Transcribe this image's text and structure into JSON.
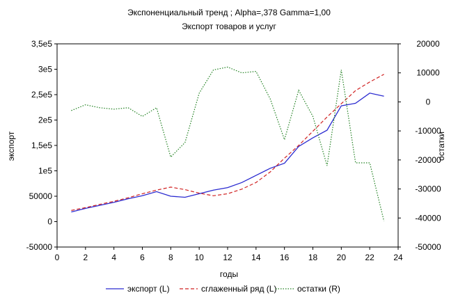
{
  "chart_data": {
    "type": "line",
    "title": "Экспоненциальный тренд ; Alpha=,378 Gamma=1,00",
    "subtitle": "Экспорт товаров и услуг",
    "xlabel": "годы",
    "ylabel_left": "экспорт",
    "ylabel_right": "остатки",
    "xlim": [
      0,
      24
    ],
    "ylim_left": [
      -50000,
      350000
    ],
    "ylim_right": [
      -50000,
      20000
    ],
    "x_ticks": [
      "0",
      "2",
      "4",
      "6",
      "8",
      "10",
      "12",
      "14",
      "16",
      "18",
      "20",
      "22",
      "24"
    ],
    "y_left_ticks": [
      "-50000",
      "0",
      "50000",
      "1e5",
      "1,5e5",
      "2e5",
      "2,5e5",
      "3e5",
      "3,5e5"
    ],
    "y_right_ticks": [
      "-50000",
      "-40000",
      "-30000",
      "-20000",
      "-10000",
      "0",
      "10000",
      "20000"
    ],
    "grid": false,
    "legend_position": "bottom",
    "x": [
      1,
      2,
      3,
      4,
      5,
      6,
      7,
      8,
      9,
      10,
      11,
      12,
      13,
      14,
      15,
      16,
      17,
      18,
      19,
      20,
      21,
      22,
      23
    ],
    "series": [
      {
        "name": "экспорт (L)",
        "axis": "left",
        "style": "solid",
        "color": "#2a2ad0",
        "values": [
          19000,
          26000,
          32000,
          38000,
          45000,
          51000,
          59000,
          50000,
          48000,
          55000,
          62000,
          67000,
          77000,
          91000,
          105000,
          115000,
          148000,
          165000,
          180000,
          228000,
          233000,
          253000,
          247000
        ]
      },
      {
        "name": "сглаженный ряд (L)",
        "axis": "left",
        "style": "dashed",
        "color": "#d02020",
        "values": [
          22000,
          27500,
          34000,
          40000,
          47000,
          55000,
          62000,
          68000,
          63000,
          56000,
          51000,
          55000,
          64000,
          77000,
          98000,
          125000,
          150000,
          178000,
          206000,
          232000,
          258000,
          275000,
          290000
        ]
      },
      {
        "name": "остатки (R)",
        "axis": "right",
        "style": "dotted",
        "color": "#208020",
        "values": [
          -3000,
          -1000,
          -2000,
          -2500,
          -2000,
          -5000,
          -2000,
          -19000,
          -14000,
          3000,
          11000,
          12000,
          10000,
          10500,
          1000,
          -13000,
          4000,
          -5000,
          -22000,
          11000,
          -21000,
          -21000,
          -41000
        ]
      }
    ]
  }
}
